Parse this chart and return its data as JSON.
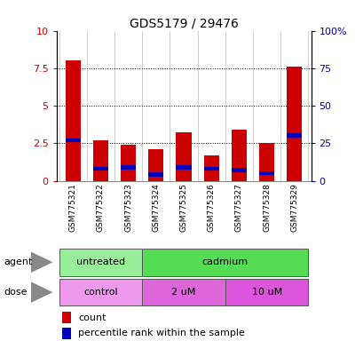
{
  "title": "GDS5179 / 29476",
  "samples": [
    "GSM775321",
    "GSM775322",
    "GSM775323",
    "GSM775324",
    "GSM775325",
    "GSM775326",
    "GSM775327",
    "GSM775328",
    "GSM775329"
  ],
  "count_values": [
    8.0,
    2.7,
    2.4,
    2.1,
    3.2,
    1.7,
    3.4,
    2.5,
    7.6
  ],
  "percentile_values": [
    27,
    8,
    9,
    4,
    9,
    8,
    7,
    5,
    30
  ],
  "ylim_left": [
    0,
    10
  ],
  "ylim_right": [
    0,
    100
  ],
  "yticks_left": [
    0,
    2.5,
    5,
    7.5,
    10
  ],
  "yticks_right": [
    0,
    25,
    50,
    75,
    100
  ],
  "ytick_labels_left": [
    "0",
    "2.5",
    "5",
    "7.5",
    "10"
  ],
  "ytick_labels_right": [
    "0",
    "25",
    "50",
    "75",
    "100%"
  ],
  "bar_color": "#cc0000",
  "percentile_color": "#0000bb",
  "bar_width": 0.55,
  "agent_groups": [
    {
      "label": "untreated",
      "start": 0,
      "end": 3,
      "color": "#99ee99"
    },
    {
      "label": "cadmium",
      "start": 3,
      "end": 9,
      "color": "#55dd55"
    }
  ],
  "dose_groups": [
    {
      "label": "control",
      "start": 0,
      "end": 3,
      "color": "#ee99ee"
    },
    {
      "label": "2 uM",
      "start": 3,
      "end": 6,
      "color": "#dd66dd"
    },
    {
      "label": "10 uM",
      "start": 6,
      "end": 9,
      "color": "#dd55dd"
    }
  ],
  "legend_count_label": "count",
  "legend_percentile_label": "percentile rank within the sample",
  "left_axis_color": "#cc0000",
  "right_axis_color": "#0000bb",
  "background_color": "#ffffff",
  "plot_bg_color": "#ffffff",
  "tick_label_area_color": "#cccccc",
  "figure_width": 4.1,
  "figure_height": 3.84,
  "dpi": 100
}
